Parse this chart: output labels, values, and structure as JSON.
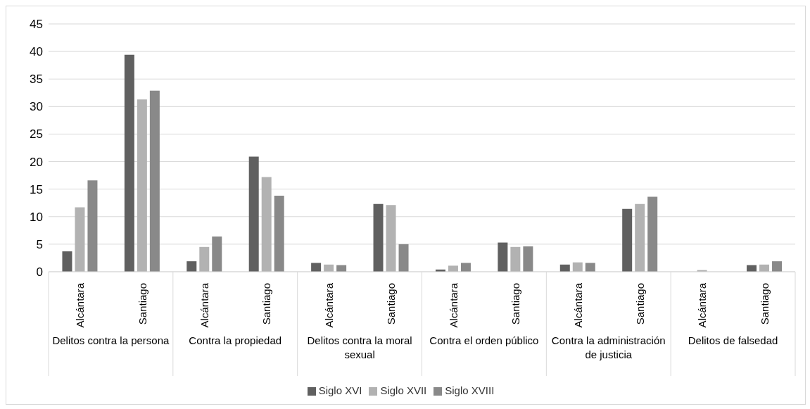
{
  "chart_data": {
    "type": "bar",
    "categories": [
      "Alcántara",
      "Santiago",
      "Alcántara",
      "Santiago",
      "Alcántara",
      "Santiago",
      "Alcántara",
      "Santiago",
      "Alcántara",
      "Santiago",
      "Alcántara",
      "Santiago"
    ],
    "annotations": [
      "Delitos contra la persona",
      "Contra la propiedad",
      "Delitos contra la moral sexual",
      "Contra el orden público",
      "Contra la administración de justicia",
      "Delitos de falsedad"
    ],
    "series": [
      {
        "name": "Siglo XVI",
        "color": "#606060",
        "values": [
          3.7,
          39.4,
          1.9,
          20.9,
          1.6,
          12.3,
          0.4,
          5.3,
          1.3,
          11.4,
          0,
          1.2
        ]
      },
      {
        "name": "Siglo XVII",
        "color": "#b2b2b2",
        "values": [
          11.7,
          31.3,
          4.5,
          17.2,
          1.3,
          12.1,
          1.1,
          4.5,
          1.7,
          12.3,
          0.3,
          1.3
        ]
      },
      {
        "name": "Siglo XVIII",
        "color": "#898989",
        "values": [
          16.6,
          32.9,
          6.4,
          13.8,
          1.2,
          5.0,
          1.6,
          4.6,
          1.6,
          13.6,
          0,
          1.9
        ]
      }
    ],
    "ylim": [
      0,
      45
    ],
    "yticks": [
      0,
      5,
      10,
      15,
      20,
      25,
      30,
      35,
      40,
      45
    ],
    "grid": "y",
    "legend": "bottom"
  }
}
